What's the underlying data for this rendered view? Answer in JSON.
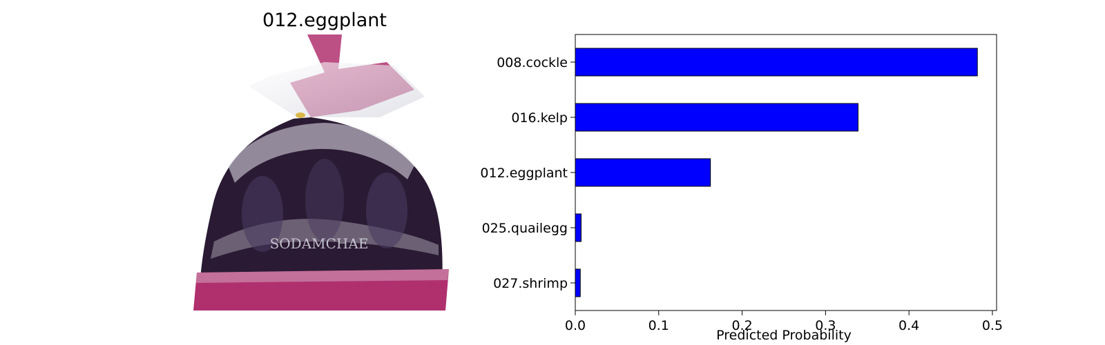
{
  "image_title": "012.eggplant",
  "photo": {
    "subject": "bag-of-eggplants",
    "printed_text": "SODAMCHAE",
    "colors": {
      "bag_band": "#b0306e",
      "eggplant": "#2a1a33",
      "plastic": "#e8e8ee"
    }
  },
  "chart_data": {
    "type": "bar",
    "orientation": "horizontal",
    "categories": [
      "008.cockle",
      "016.kelp",
      "012.eggplant",
      "025.quailegg",
      "027.shrimp"
    ],
    "values": [
      0.482,
      0.339,
      0.162,
      0.007,
      0.006
    ],
    "xlabel": "Predicted Probability",
    "ylabel": "",
    "xlim": [
      0,
      0.505
    ],
    "xticks": [
      0.0,
      0.1,
      0.2,
      0.3,
      0.4,
      0.5
    ],
    "xtick_labels": [
      "0.0",
      "0.1",
      "0.2",
      "0.3",
      "0.4",
      "0.5"
    ],
    "grid": false,
    "bar_color": "#0000ff",
    "edge_color": "#000000"
  }
}
